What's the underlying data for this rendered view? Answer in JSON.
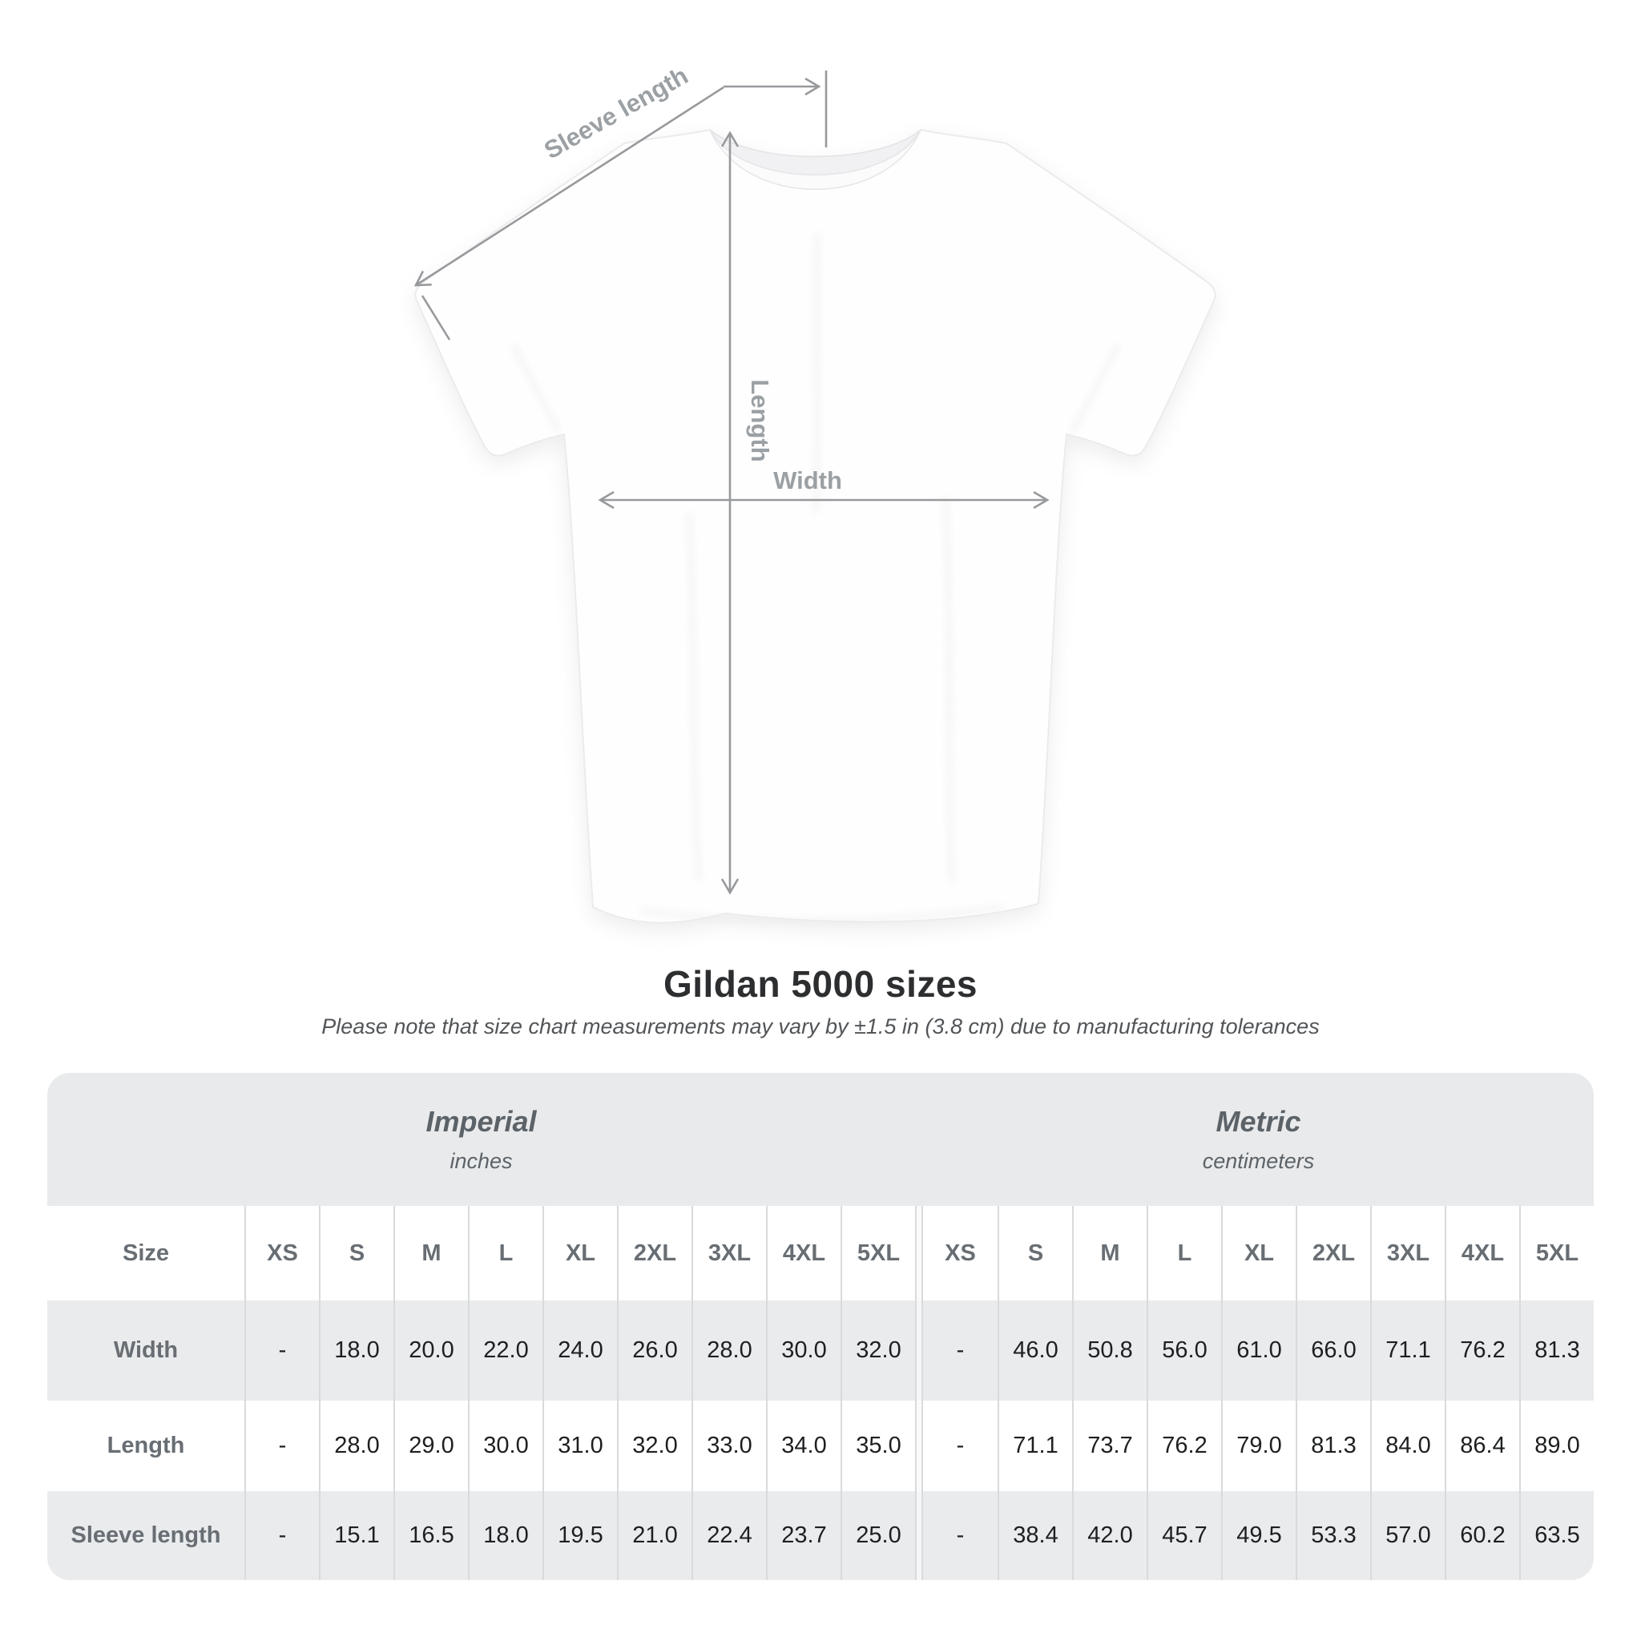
{
  "figure": {
    "sleeve_label": "Sleeve length",
    "length_label": "Length",
    "width_label": "Width"
  },
  "title": "Gildan 5000 sizes",
  "subtitle": "Please note that size chart measurements may vary by ±1.5 in (3.8 cm) due to manufacturing tolerances",
  "table": {
    "groups": [
      {
        "name": "Imperial",
        "unit": "inches"
      },
      {
        "name": "Metric",
        "unit": "centimeters"
      }
    ],
    "size_header": "Size",
    "sizes": [
      "XS",
      "S",
      "M",
      "L",
      "XL",
      "2XL",
      "3XL",
      "4XL",
      "5XL"
    ],
    "rows": [
      {
        "label": "Width",
        "imperial": [
          "-",
          "18.0",
          "20.0",
          "22.0",
          "24.0",
          "26.0",
          "28.0",
          "30.0",
          "32.0"
        ],
        "metric": [
          "-",
          "46.0",
          "50.8",
          "56.0",
          "61.0",
          "66.0",
          "71.1",
          "76.2",
          "81.3"
        ]
      },
      {
        "label": "Length",
        "imperial": [
          "-",
          "28.0",
          "29.0",
          "30.0",
          "31.0",
          "32.0",
          "33.0",
          "34.0",
          "35.0"
        ],
        "metric": [
          "-",
          "71.1",
          "73.7",
          "76.2",
          "79.0",
          "81.3",
          "84.0",
          "86.4",
          "89.0"
        ]
      },
      {
        "label": "Sleeve length",
        "imperial": [
          "-",
          "15.1",
          "16.5",
          "18.0",
          "19.5",
          "21.0",
          "22.4",
          "23.7",
          "25.0"
        ],
        "metric": [
          "-",
          "38.4",
          "42.0",
          "45.7",
          "49.5",
          "53.3",
          "57.0",
          "60.2",
          "63.5"
        ]
      }
    ]
  },
  "chart_data": {
    "type": "table",
    "title": "Gildan 5000 sizes",
    "note": "Measurements may vary by ±1.5 in (3.8 cm) due to manufacturing tolerances",
    "columns": [
      "Size",
      "XS",
      "S",
      "M",
      "L",
      "XL",
      "2XL",
      "3XL",
      "4XL",
      "5XL"
    ],
    "imperial_inches": {
      "Width": [
        null,
        18.0,
        20.0,
        22.0,
        24.0,
        26.0,
        28.0,
        30.0,
        32.0
      ],
      "Length": [
        null,
        28.0,
        29.0,
        30.0,
        31.0,
        32.0,
        33.0,
        34.0,
        35.0
      ],
      "Sleeve length": [
        null,
        15.1,
        16.5,
        18.0,
        19.5,
        21.0,
        22.4,
        23.7,
        25.0
      ]
    },
    "metric_centimeters": {
      "Width": [
        null,
        46.0,
        50.8,
        56.0,
        61.0,
        66.0,
        71.1,
        76.2,
        81.3
      ],
      "Length": [
        null,
        71.1,
        73.7,
        76.2,
        79.0,
        81.3,
        84.0,
        86.4,
        89.0
      ],
      "Sleeve length": [
        null,
        38.4,
        42.0,
        45.7,
        49.5,
        53.3,
        57.0,
        60.2,
        63.5
      ]
    }
  },
  "colors": {
    "annotation_gray": "#97999c",
    "label_gray": "#9ba0a4",
    "band_bg": "#e9eaeb",
    "alt_row_bg": "#eaebec",
    "header_text": "#686e73",
    "value_text": "#1d1f21",
    "title_text": "#2c2e30"
  }
}
